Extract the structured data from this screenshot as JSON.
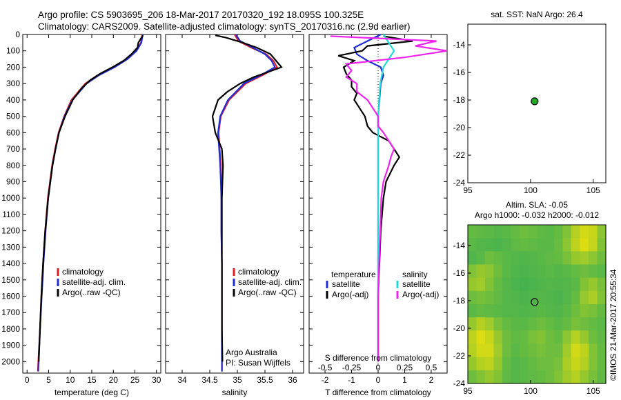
{
  "header": {
    "line1": "Argo profile: CS 5903695_206 18-Mar-2017 20170320_192 18.095S 100.325E",
    "line2": "Climatology: CARS2009. Satellite-adjusted climatology: synTS_20170316.nc (2.9d earlier)"
  },
  "colors": {
    "climatology": "#e41a1c",
    "satellite": "#1f2bd6",
    "argo": "#000000",
    "satellite_s": "#22d8d8",
    "argo_s": "#ee22ee",
    "float_marker": "#22aa22"
  },
  "chart_data": [
    {
      "type": "line",
      "id": "temperature",
      "xlabel": "temperature (deg C)",
      "xlim": [
        -1,
        31
      ],
      "xticks": [
        0,
        5,
        10,
        15,
        20,
        25,
        30
      ],
      "xticklabels": [
        "0",
        "5",
        "10",
        "15",
        "20",
        "25",
        "30"
      ],
      "ylim": [
        2070,
        0
      ],
      "yticks": [
        0,
        100,
        200,
        300,
        400,
        500,
        600,
        700,
        800,
        900,
        1000,
        1100,
        1200,
        1300,
        1400,
        1500,
        1600,
        1700,
        1800,
        1900,
        2000
      ],
      "yticklabels": [
        "0",
        "100",
        "200",
        "300",
        "400",
        "500",
        "600",
        "700",
        "800",
        "900",
        "1000",
        "1100",
        "1200",
        "1300",
        "1400",
        "1500",
        "1600",
        "1700",
        "1800",
        "1900",
        "2000"
      ],
      "legend": [
        "climatology",
        "satellite-adj. clim.",
        "Argo(..raw -QC)"
      ],
      "series": [
        {
          "name": "climatology",
          "color": "#e41a1c",
          "depth": [
            0,
            20,
            50,
            100,
            150,
            200,
            250,
            300,
            400,
            500,
            600,
            700,
            800,
            1000,
            1200,
            1400,
            1600,
            1800,
            2000,
            2060
          ],
          "values": [
            26.7,
            26.6,
            26.4,
            25.2,
            23.0,
            20.0,
            16.3,
            13.5,
            10.3,
            8.6,
            7.3,
            6.5,
            5.8,
            4.8,
            4.2,
            3.7,
            3.3,
            3.0,
            2.6,
            2.5
          ]
        },
        {
          "name": "satellite-adj. clim.",
          "color": "#1f2bd6",
          "depth": [
            0,
            20,
            50,
            100,
            150,
            200,
            250,
            300,
            400,
            500,
            600,
            700,
            800,
            1000,
            1200,
            1400,
            1600,
            1800,
            2000,
            2060
          ],
          "values": [
            26.8,
            26.7,
            26.5,
            25.4,
            23.3,
            20.3,
            16.6,
            13.8,
            10.5,
            8.7,
            7.4,
            6.6,
            5.9,
            4.9,
            4.3,
            3.8,
            3.4,
            3.0,
            2.7,
            2.6
          ]
        },
        {
          "name": "Argo(..raw -QC)",
          "color": "#000000",
          "depth": [
            5,
            20,
            50,
            80,
            120,
            160,
            200,
            240,
            280,
            330,
            400,
            500,
            600,
            700,
            800,
            1000,
            1200,
            1400,
            1600,
            1800,
            2000
          ],
          "values": [
            26.9,
            26.5,
            25.8,
            25.6,
            24.2,
            22.4,
            19.8,
            16.9,
            14.6,
            12.6,
            10.6,
            8.8,
            7.4,
            6.6,
            5.9,
            4.9,
            4.2,
            3.7,
            3.3,
            3.0,
            2.7
          ]
        }
      ]
    },
    {
      "type": "line",
      "id": "salinity",
      "xlabel": "salinity",
      "xlim": [
        33.7,
        36.2
      ],
      "xticks": [
        34,
        34.5,
        35,
        35.5,
        36
      ],
      "xticklabels": [
        "34",
        "34.5",
        "35",
        "35.5",
        "36"
      ],
      "ylim": [
        2070,
        0
      ],
      "legend": [
        "climatology",
        "satellite-adj. clim.",
        "Argo(..raw -QC)"
      ],
      "annotations": [
        "Argo Australia",
        "PI: Susan Wijffels"
      ],
      "series": [
        {
          "name": "climatology",
          "color": "#e41a1c",
          "depth": [
            0,
            40,
            80,
            120,
            160,
            200,
            250,
            300,
            400,
            500,
            600,
            700,
            800,
            1000,
            1200,
            1400,
            1600,
            1800,
            2000,
            2060
          ],
          "values": [
            34.95,
            35.02,
            35.25,
            35.52,
            35.65,
            35.72,
            35.45,
            35.15,
            34.85,
            34.7,
            34.66,
            34.68,
            34.7,
            34.71,
            34.71,
            34.72,
            34.72,
            34.72,
            34.72,
            34.72
          ]
        },
        {
          "name": "satellite-adj. clim.",
          "color": "#1f2bd6",
          "depth": [
            0,
            40,
            80,
            120,
            160,
            200,
            250,
            300,
            400,
            500,
            600,
            700,
            800,
            1000,
            1200,
            1400,
            1600,
            1800,
            2000,
            2060
          ],
          "values": [
            34.97,
            35.05,
            35.28,
            35.5,
            35.62,
            35.68,
            35.42,
            35.12,
            34.83,
            34.69,
            34.65,
            34.67,
            34.69,
            34.71,
            34.71,
            34.72,
            34.72,
            34.72,
            34.72,
            34.72
          ]
        },
        {
          "name": "Argo(..raw -QC)",
          "color": "#000000",
          "depth": [
            5,
            20,
            50,
            80,
            120,
            160,
            200,
            230,
            260,
            300,
            350,
            400,
            500,
            600,
            700,
            800,
            1000,
            1200,
            1400,
            1600,
            1800,
            2000
          ],
          "values": [
            34.6,
            34.8,
            35.1,
            35.35,
            35.6,
            35.7,
            35.8,
            35.55,
            35.3,
            35.05,
            34.82,
            34.65,
            34.55,
            34.6,
            34.72,
            34.74,
            34.72,
            34.72,
            34.72,
            34.72,
            34.72,
            34.73
          ]
        }
      ]
    },
    {
      "type": "line",
      "id": "difference",
      "xlabel": "T difference from climatology",
      "xlabel_top": "S difference from climatology",
      "xlim": [
        -2.6,
        2.6
      ],
      "xticks": [
        -2,
        -1,
        0,
        1,
        2
      ],
      "xticklabels": [
        "-2",
        "-1",
        "0",
        "1",
        "2"
      ],
      "sticks": [
        -0.5,
        -0.25,
        0,
        0.25,
        0.5
      ],
      "sticklabels": [
        "-0.5",
        "-0.25",
        "0",
        "0.25",
        "0.5"
      ],
      "ylim": [
        2070,
        0
      ],
      "legend_headers": [
        "temperature",
        "salinity"
      ],
      "legend": [
        "satellite",
        "Argo(-adj)",
        "satellite",
        "Argo(-adj)"
      ],
      "series": [
        {
          "name": "T satellite",
          "color": "#1f2bd6",
          "depth": [
            0,
            40,
            80,
            120,
            160,
            200,
            250,
            300,
            400,
            500,
            600,
            700,
            800,
            1000,
            1200,
            1400,
            1600,
            1800,
            2000
          ],
          "values": [
            0.1,
            -0.4,
            -0.9,
            -0.8,
            -0.4,
            0.1,
            0.2,
            0.1,
            0.05,
            0.0,
            0.0,
            0.0,
            0.0,
            0.0,
            0.0,
            0.0,
            0.0,
            0.0,
            0.0
          ]
        },
        {
          "name": "T Argo(-adj)",
          "color": "#000000",
          "depth": [
            10,
            40,
            70,
            100,
            130,
            160,
            200,
            240,
            280,
            320,
            360,
            400,
            450,
            500,
            560,
            600,
            650,
            700,
            750,
            800,
            900,
            1000,
            1200,
            1400,
            1600,
            1800,
            2000
          ],
          "values": [
            0.2,
            1.3,
            -0.4,
            -0.6,
            -1.5,
            -0.9,
            -1.3,
            -1.2,
            -1.0,
            -1.0,
            -0.8,
            -0.9,
            -0.7,
            -0.5,
            -0.4,
            -0.2,
            0.4,
            0.6,
            0.8,
            0.6,
            0.3,
            0.2,
            0.1,
            0.05,
            0.0,
            0.0,
            0.0
          ]
        },
        {
          "name": "S satellite",
          "color": "#22d8d8",
          "depth": [
            0,
            50,
            100,
            150,
            200,
            300,
            400,
            500,
            700,
            1000,
            1500,
            2000
          ],
          "values": [
            0.05,
            0.1,
            0.15,
            0.1,
            0.05,
            0.02,
            0.01,
            0.0,
            0.0,
            0.0,
            0.0,
            0.0
          ]
        },
        {
          "name": "S Argo(-adj)",
          "color": "#ee22ee",
          "depth": [
            10,
            40,
            70,
            100,
            140,
            180,
            220,
            260,
            300,
            350,
            400,
            450,
            500,
            560,
            600,
            650,
            700,
            750,
            800,
            900,
            1000,
            1200,
            1400,
            1600,
            1800,
            2000
          ],
          "values": [
            -0.45,
            0.55,
            0.35,
            0.65,
            0.25,
            -0.3,
            -0.25,
            -0.3,
            -0.2,
            -0.2,
            -0.1,
            -0.05,
            0.0,
            0.0,
            0.05,
            0.1,
            0.15,
            0.12,
            0.1,
            0.05,
            0.03,
            0.02,
            0.01,
            0.0,
            0.0,
            0.0
          ]
        }
      ]
    },
    {
      "type": "scatter",
      "id": "location-map",
      "title": "sat. SST: NaN  Argo: 26.4",
      "xlim": [
        95,
        106
      ],
      "ylim": [
        -24,
        -12.5
      ],
      "xticks": [
        95,
        100,
        105
      ],
      "xticklabels": [
        "95",
        "100",
        "105"
      ],
      "yticks": [
        -24,
        -22,
        -20,
        -18,
        -16,
        -14
      ],
      "yticklabels": [
        "-24",
        "-22",
        "-20",
        "-18",
        "-16",
        "-14"
      ],
      "points": [
        {
          "lon": 100.325,
          "lat": -18.095
        }
      ]
    },
    {
      "type": "heatmap",
      "id": "altimetry-map",
      "title_line1": "Altim. SLA: -0.05",
      "title_line2": "Argo h1000: -0.032  h2000: -0.012",
      "xlim": [
        95,
        106
      ],
      "ylim": [
        -24,
        -12.5
      ],
      "xticks": [
        95,
        100,
        105
      ],
      "xticklabels": [
        "95",
        "100",
        "105"
      ],
      "yticks": [
        -24,
        -22,
        -20,
        -18,
        -16,
        -14
      ],
      "yticklabels": [
        "-24",
        "-22",
        "-20",
        "-18",
        "-16",
        "-14"
      ],
      "points": [
        {
          "lon": 100.325,
          "lat": -18.095
        }
      ],
      "grid": [
        [
          0.3,
          0.28,
          0.25,
          0.22,
          0.25,
          0.3,
          0.35,
          0.32,
          0.28,
          0.25,
          0.3,
          0.45,
          0.7,
          0.85,
          0.8,
          0.5
        ],
        [
          0.25,
          0.22,
          0.2,
          0.18,
          0.22,
          0.28,
          0.3,
          0.28,
          0.25,
          0.25,
          0.32,
          0.5,
          0.75,
          0.9,
          0.78,
          0.45
        ],
        [
          0.2,
          0.25,
          0.35,
          0.3,
          0.25,
          0.22,
          0.2,
          0.22,
          0.25,
          0.28,
          0.3,
          0.4,
          0.55,
          0.6,
          0.5,
          0.35
        ],
        [
          0.45,
          0.55,
          0.5,
          0.35,
          0.25,
          0.2,
          0.18,
          0.2,
          0.22,
          0.25,
          0.22,
          0.25,
          0.3,
          0.35,
          0.3,
          0.25
        ],
        [
          0.55,
          0.6,
          0.45,
          0.3,
          0.22,
          0.18,
          0.15,
          0.18,
          0.2,
          0.22,
          0.2,
          0.22,
          0.25,
          0.45,
          0.55,
          0.4
        ],
        [
          0.35,
          0.4,
          0.35,
          0.28,
          0.22,
          0.2,
          0.18,
          0.2,
          0.22,
          0.2,
          0.18,
          0.22,
          0.3,
          0.55,
          0.65,
          0.45
        ],
        [
          0.25,
          0.3,
          0.28,
          0.25,
          0.22,
          0.22,
          0.2,
          0.22,
          0.25,
          0.22,
          0.2,
          0.25,
          0.35,
          0.45,
          0.4,
          0.3
        ],
        [
          0.55,
          0.7,
          0.6,
          0.4,
          0.3,
          0.25,
          0.25,
          0.3,
          0.35,
          0.3,
          0.25,
          0.3,
          0.4,
          0.35,
          0.3,
          0.25
        ],
        [
          0.75,
          0.9,
          0.8,
          0.55,
          0.35,
          0.28,
          0.3,
          0.4,
          0.45,
          0.35,
          0.3,
          0.5,
          0.7,
          0.55,
          0.35,
          0.28
        ],
        [
          0.7,
          0.85,
          0.85,
          0.6,
          0.35,
          0.25,
          0.3,
          0.35,
          0.4,
          0.35,
          0.35,
          0.6,
          0.85,
          0.75,
          0.45,
          0.3
        ],
        [
          0.55,
          0.7,
          0.75,
          0.55,
          0.3,
          0.22,
          0.25,
          0.3,
          0.35,
          0.35,
          0.4,
          0.65,
          0.8,
          0.7,
          0.45,
          0.3
        ],
        [
          0.35,
          0.45,
          0.55,
          0.45,
          0.28,
          0.22,
          0.25,
          0.28,
          0.3,
          0.35,
          0.45,
          0.6,
          0.7,
          0.55,
          0.4,
          0.28
        ]
      ]
    }
  ],
  "footer": {
    "stamp": "©IMOS 21-Mar-2017 20:55:34"
  }
}
